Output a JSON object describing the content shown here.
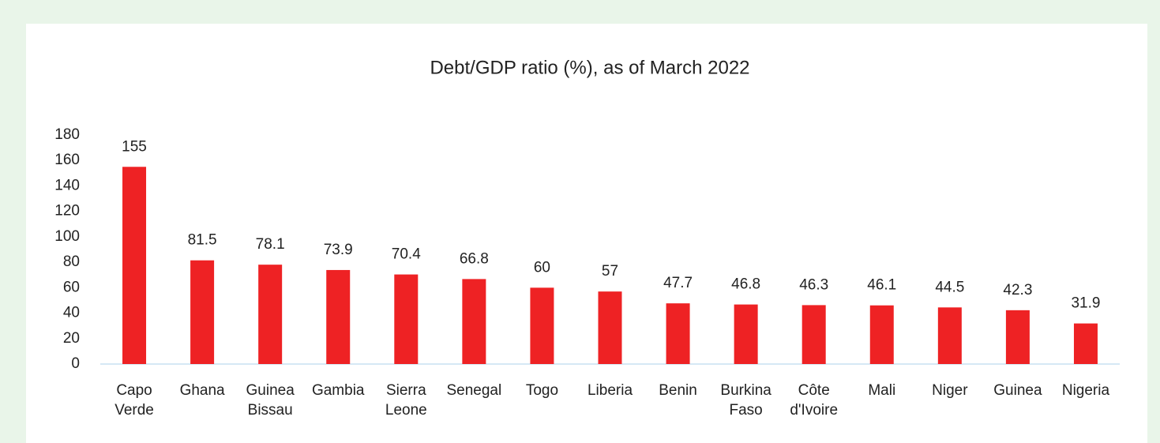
{
  "chart_data": {
    "type": "bar",
    "title": "Debt/GDP ratio (%), as of March 2022",
    "categories": [
      "Capo Verde",
      "Ghana",
      "Guinea Bissau",
      "Gambia",
      "Sierra Leone",
      "Senegal",
      "Togo",
      "Liberia",
      "Benin",
      "Burkina Faso",
      "Côte d'Ivoire",
      "Mali",
      "Niger",
      "Guinea",
      "Nigeria"
    ],
    "values": [
      155,
      81.5,
      78.1,
      73.9,
      70.4,
      66.8,
      60,
      57,
      47.7,
      46.8,
      46.3,
      46.1,
      44.5,
      42.3,
      31.9
    ],
    "color": "#ee2224",
    "ylim": [
      0,
      180
    ],
    "yticks": [
      0,
      20,
      40,
      60,
      80,
      100,
      120,
      140,
      160,
      180
    ],
    "grid": false
  }
}
